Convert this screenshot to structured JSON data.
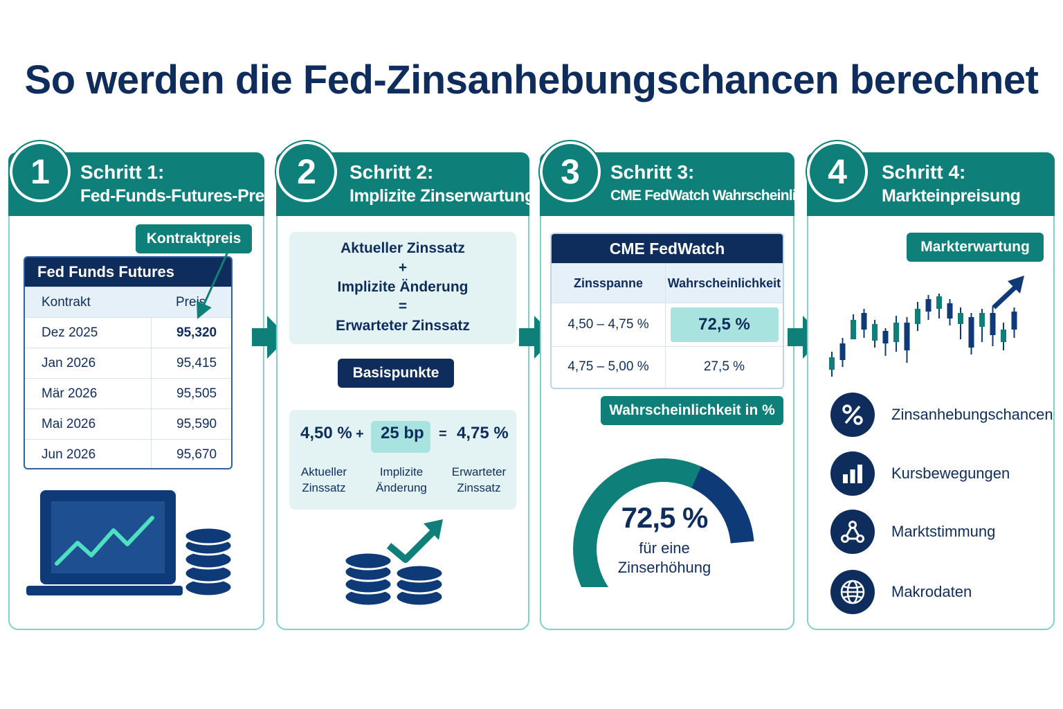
{
  "title": "So werden die Fed-Zinsanhebungschancen berechnet",
  "steps": [
    {
      "number": "1",
      "title": "Schritt 1:",
      "subtitle": "Fed-Funds-Futures-Preise"
    },
    {
      "number": "2",
      "title": "Schritt 2:",
      "subtitle": "Implizite Zinserwartung"
    },
    {
      "number": "3",
      "title": "Schritt 3:",
      "subtitle": "CME FedWatch Wahrscheinlichkeit"
    },
    {
      "number": "4",
      "title": "Schritt 4:",
      "subtitle": "Markteinpreisung"
    }
  ],
  "panel1": {
    "callout": "Kontraktpreis",
    "table_title": "Fed Funds Futures",
    "columns": [
      "Kontrakt",
      "Preis"
    ],
    "rows": [
      {
        "contract": "Dez 2025",
        "price": "95,320"
      },
      {
        "contract": "Jan 2026",
        "price": "95,415"
      },
      {
        "contract": "Mär 2026",
        "price": "95,505"
      },
      {
        "contract": "Mai 2026",
        "price": "95,590"
      },
      {
        "contract": "Jun 2026",
        "price": "95,670"
      }
    ],
    "icons": [
      "laptop-chart-icon",
      "coin-stack-icon"
    ]
  },
  "panel2": {
    "formula": [
      "Aktueller Zinssatz",
      "+",
      "Implizite Änderung",
      "=",
      "Erwarteter Zinssatz"
    ],
    "callout": "Basispunkte",
    "calc": {
      "current": "4,50 %",
      "plus": "+",
      "change": "25 bp",
      "equals": "=",
      "expected": "4,75 %",
      "label_current": [
        "Aktueller",
        "Zinssatz"
      ],
      "label_change": [
        "Implizite",
        "Änderung"
      ],
      "label_expected": [
        "Erwarteter",
        "Zinssatz"
      ]
    },
    "icons": [
      "coins-up-arrow-icon"
    ]
  },
  "panel3": {
    "table_title": "CME FedWatch",
    "columns": [
      "Zinsspanne",
      "Wahrscheinlichkeit"
    ],
    "rows": [
      {
        "range": "4,50 – 4,75 %",
        "probability": "72,5 %"
      },
      {
        "range": "4,75 – 5,00 %",
        "probability": "27,5 %"
      }
    ],
    "callout": "Wahrscheinlichkeit in %",
    "gauge": {
      "value": 72.5,
      "value_label": "72,5 %",
      "line1": "für eine",
      "line2": "Zinserhöhung",
      "color_primary": "#0e8079",
      "color_secondary": "#0f3a78"
    }
  },
  "panel4": {
    "callout": "Markterwartung",
    "icons": [
      "candlestick-chart-icon"
    ],
    "items": [
      {
        "label": "Zinsanhebungschancen",
        "icon": "percent-icon"
      },
      {
        "label": "Kursbewegungen",
        "icon": "bar-chart-icon"
      },
      {
        "label": "Marktstimmung",
        "icon": "network-icon"
      },
      {
        "label": "Makrodaten",
        "icon": "globe-icon"
      }
    ]
  },
  "colors": {
    "teal": "#0e8079",
    "navy": "#0f2d5c",
    "light": "#e3f3f4",
    "border": "#7dd3cd"
  }
}
